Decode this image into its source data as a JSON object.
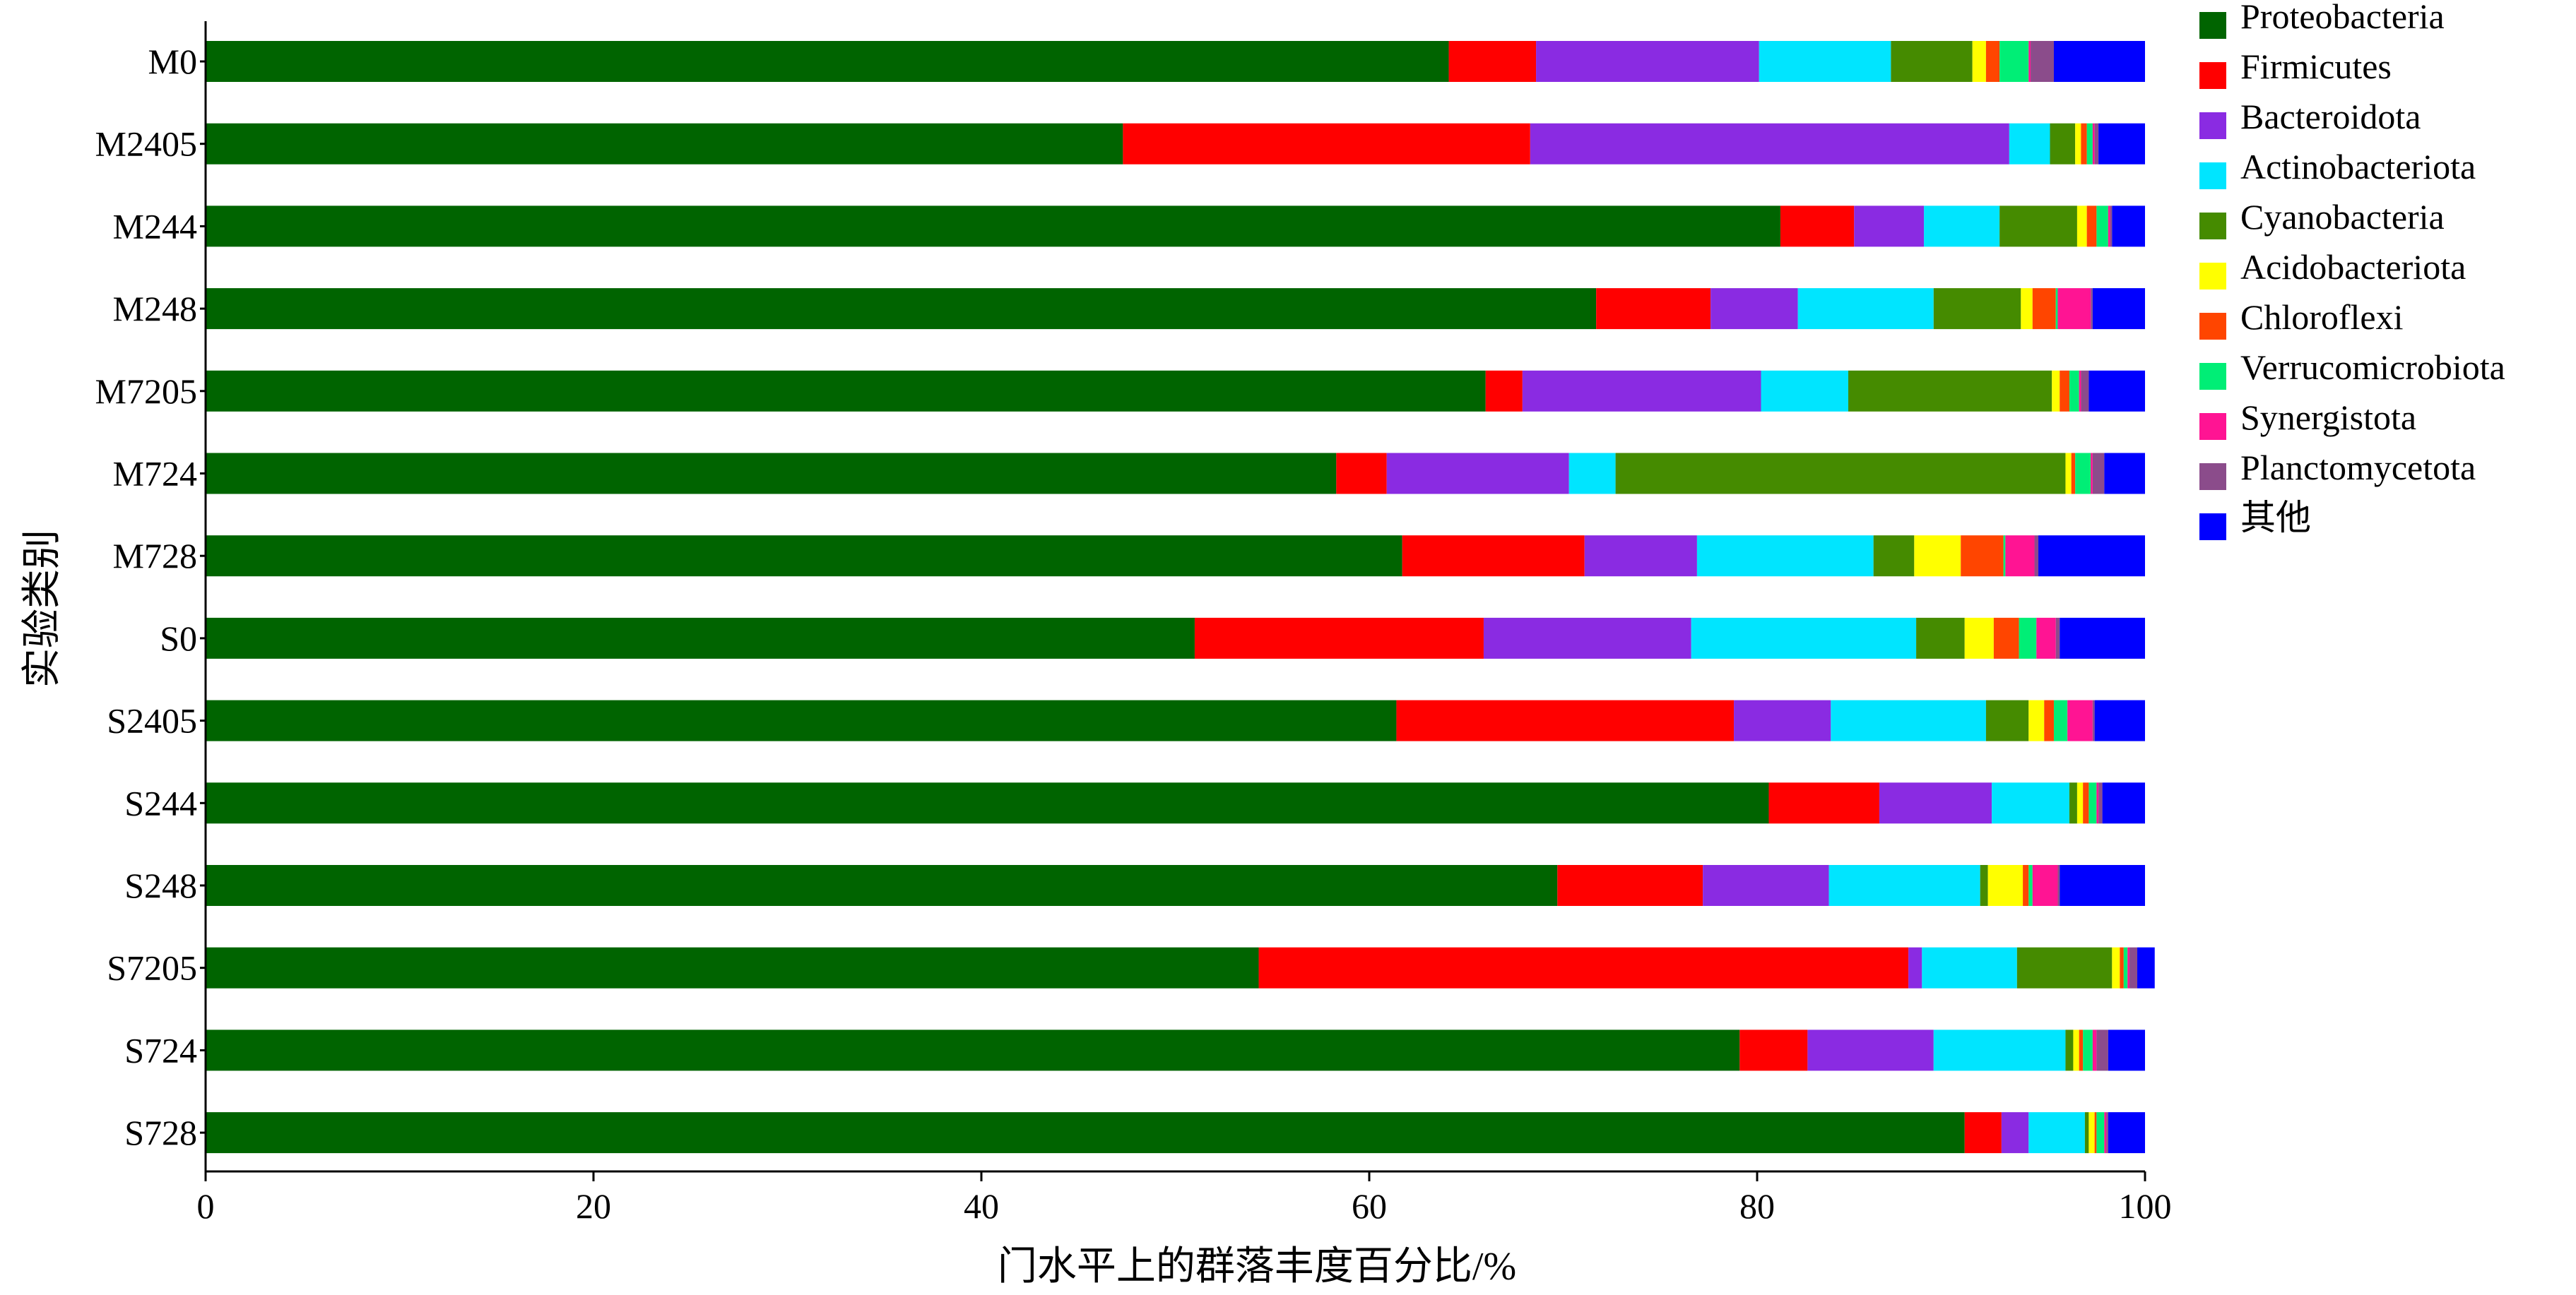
{
  "chart_data": {
    "type": "bar",
    "orientation": "horizontal",
    "stacked": true,
    "title": "",
    "xlabel": "门水平上的群落丰度百分比/%",
    "ylabel": "实验类别",
    "xlim": [
      0,
      100
    ],
    "xticks": [
      0,
      20,
      40,
      60,
      80,
      100
    ],
    "grid": false,
    "legend_position": "right",
    "categories": [
      "M0",
      "M2405",
      "M244",
      "M248",
      "M7205",
      "M724",
      "M728",
      "S0",
      "S2405",
      "S244",
      "S248",
      "S7205",
      "S724",
      "S728"
    ],
    "series": [
      {
        "name": "Proteobacteria",
        "color": "#006400",
        "values": [
          64.1,
          47.3,
          81.2,
          71.7,
          66.0,
          58.3,
          61.7,
          51.0,
          61.4,
          80.6,
          69.7,
          54.3,
          79.1,
          90.7
        ]
      },
      {
        "name": "Firmicutes",
        "color": "#ff0000",
        "values": [
          4.5,
          21.0,
          3.8,
          5.9,
          1.9,
          2.6,
          9.4,
          14.9,
          17.4,
          5.7,
          7.5,
          33.5,
          3.5,
          1.9
        ]
      },
      {
        "name": "Bacteroidota",
        "color": "#8a2be2",
        "values": [
          11.5,
          24.7,
          3.6,
          4.5,
          12.3,
          9.4,
          5.8,
          10.7,
          5.0,
          5.8,
          6.5,
          0.7,
          6.5,
          1.4
        ]
      },
      {
        "name": "Actinobacteriota",
        "color": "#00e5ff",
        "values": [
          6.8,
          2.1,
          3.9,
          7.0,
          4.5,
          2.4,
          9.1,
          11.6,
          8.0,
          4.0,
          7.8,
          4.9,
          6.8,
          2.9
        ]
      },
      {
        "name": "Cyanobacteria",
        "color": "#458b00",
        "values": [
          4.2,
          1.3,
          4.0,
          4.5,
          10.5,
          23.2,
          2.1,
          2.5,
          2.2,
          0.4,
          0.4,
          4.9,
          0.4,
          0.2
        ]
      },
      {
        "name": "Acidobacteriota",
        "color": "#ffff00",
        "values": [
          0.7,
          0.3,
          0.5,
          0.6,
          0.4,
          0.3,
          2.4,
          1.5,
          0.8,
          0.3,
          1.8,
          0.4,
          0.3,
          0.3
        ]
      },
      {
        "name": "Chloroflexi",
        "color": "#ff4500",
        "values": [
          0.7,
          0.3,
          0.5,
          1.2,
          0.5,
          0.2,
          2.2,
          1.3,
          0.5,
          0.3,
          0.3,
          0.2,
          0.2,
          0.1
        ]
      },
      {
        "name": "Verrucomicrobiota",
        "color": "#00ee76",
        "values": [
          1.5,
          0.3,
          0.6,
          0.1,
          0.5,
          0.8,
          0.1,
          0.9,
          0.7,
          0.4,
          0.2,
          0.2,
          0.5,
          0.4
        ]
      },
      {
        "name": "Synergistota",
        "color": "#ff1493",
        "values": [
          0.1,
          0.1,
          0.1,
          1.7,
          0.1,
          0.1,
          1.5,
          1.0,
          1.3,
          0.1,
          1.3,
          0.1,
          0.2,
          0.1
        ]
      },
      {
        "name": "Planctomycetota",
        "color": "#8b4c8b",
        "values": [
          1.2,
          0.2,
          0.1,
          0.1,
          0.4,
          0.6,
          0.2,
          0.2,
          0.1,
          0.2,
          0.1,
          0.4,
          0.6,
          0.1
        ]
      },
      {
        "name": "其他",
        "color": "#0000ff",
        "values": [
          4.7,
          2.4,
          1.7,
          2.7,
          2.9,
          2.1,
          5.5,
          4.4,
          2.6,
          2.2,
          4.4,
          0.9,
          1.9,
          1.9
        ]
      }
    ]
  }
}
